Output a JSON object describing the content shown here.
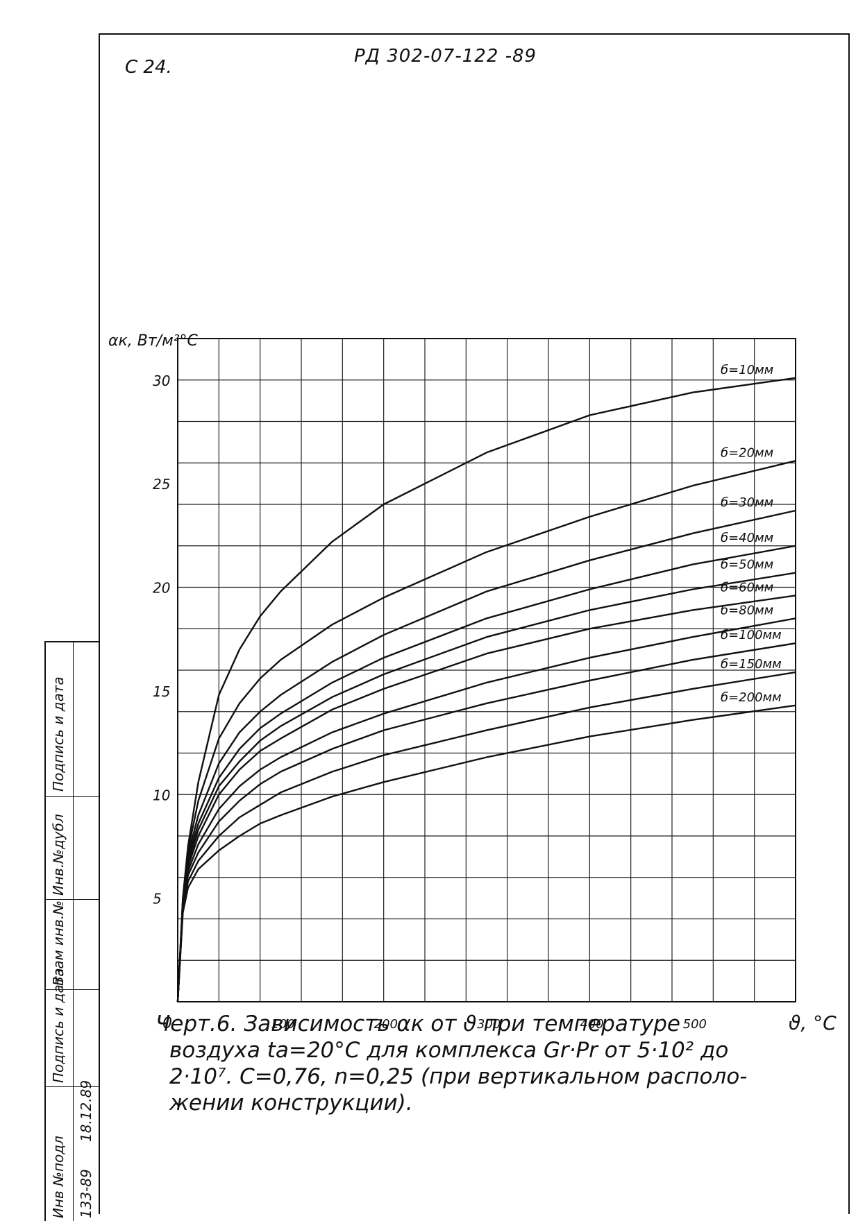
{
  "header": {
    "page_number": "С 24.",
    "document_code": "РД 302-07-122 -89"
  },
  "caption": {
    "lines": [
      "Черт.6. Зависимость αк от ϑ при температуре",
      "воздуха tа=20°С для комплекса Gr·Pr от 5·10² до",
      "2·10⁷. С=0,76, n=0,25 (при вертикальном располо-",
      "жении конструкции)."
    ]
  },
  "stamp": {
    "labels": [
      "Инв №подл",
      "Подпись и дата",
      "Взам инв.№",
      "Инв.№дубл",
      "Подпись и дата"
    ],
    "values": [
      "133-89",
      "18.12.89"
    ]
  },
  "chart_data": {
    "type": "line",
    "title": "",
    "xlabel": "ϑ, °С",
    "ylabel": "αк, Вт/м²°С",
    "xlim": [
      0,
      600
    ],
    "ylim": [
      0,
      32
    ],
    "xticks": [
      0,
      100,
      200,
      300,
      400,
      500
    ],
    "yticks": [
      5,
      10,
      15,
      20,
      25,
      30
    ],
    "grid": true,
    "x": [
      0,
      5,
      10,
      20,
      40,
      60,
      80,
      100,
      150,
      200,
      300,
      400,
      500,
      600
    ],
    "series": [
      {
        "name": "б=10мм",
        "values": [
          0,
          5.0,
          7.5,
          10.6,
          14.8,
          17.0,
          18.6,
          19.8,
          22.2,
          24.0,
          26.5,
          28.3,
          29.4,
          30.1
        ]
      },
      {
        "name": "б=20мм",
        "values": [
          0,
          5.0,
          7.3,
          9.7,
          12.7,
          14.4,
          15.6,
          16.5,
          18.2,
          19.5,
          21.7,
          23.4,
          24.9,
          26.1
        ]
      },
      {
        "name": "б=30мм",
        "values": [
          0,
          4.9,
          7.1,
          9.0,
          11.5,
          13.0,
          14.0,
          14.8,
          16.4,
          17.7,
          19.8,
          21.3,
          22.6,
          23.7
        ]
      },
      {
        "name": "б=40мм",
        "values": [
          0,
          4.8,
          6.9,
          8.6,
          10.8,
          12.2,
          13.2,
          13.9,
          15.4,
          16.6,
          18.5,
          19.9,
          21.1,
          22.0
        ]
      },
      {
        "name": "б=50мм",
        "values": [
          0,
          4.8,
          6.7,
          8.3,
          10.4,
          11.6,
          12.6,
          13.3,
          14.7,
          15.8,
          17.6,
          18.9,
          19.9,
          20.7
        ]
      },
      {
        "name": "б=60мм",
        "values": [
          0,
          4.7,
          6.5,
          8.0,
          10.0,
          11.2,
          12.1,
          12.7,
          14.1,
          15.1,
          16.8,
          18.0,
          18.9,
          19.6
        ]
      },
      {
        "name": "б=80мм",
        "values": [
          0,
          4.6,
          6.3,
          7.6,
          9.3,
          10.4,
          11.2,
          11.8,
          13.0,
          13.9,
          15.4,
          16.6,
          17.6,
          18.5
        ]
      },
      {
        "name": "б=100мм",
        "values": [
          0,
          4.5,
          6.1,
          7.2,
          8.7,
          9.7,
          10.5,
          11.1,
          12.2,
          13.1,
          14.4,
          15.5,
          16.5,
          17.3
        ]
      },
      {
        "name": "б=150мм",
        "values": [
          0,
          4.4,
          5.8,
          6.8,
          8.0,
          8.9,
          9.5,
          10.1,
          11.1,
          11.9,
          13.1,
          14.2,
          15.1,
          15.9
        ]
      },
      {
        "name": "б=200мм",
        "values": [
          0,
          4.3,
          5.5,
          6.4,
          7.3,
          8.0,
          8.6,
          9.0,
          9.9,
          10.6,
          11.8,
          12.8,
          13.6,
          14.3
        ]
      }
    ]
  }
}
